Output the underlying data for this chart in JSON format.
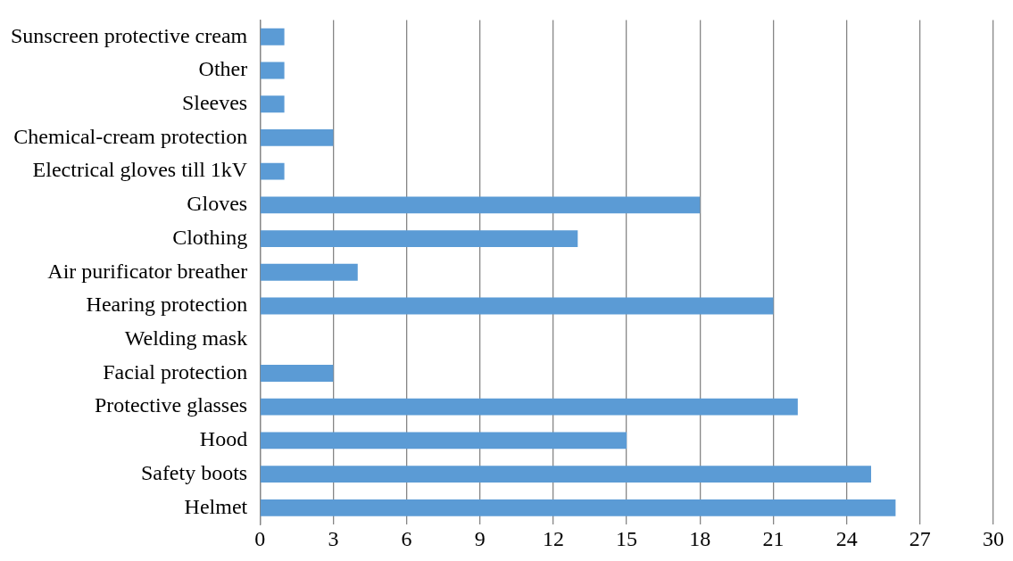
{
  "chart_data": {
    "type": "bar",
    "orientation": "horizontal",
    "categories": [
      "Sunscreen protective cream",
      "Other",
      "Sleeves",
      "Chemical-cream protection",
      "Electrical gloves till 1kV",
      "Gloves",
      "Clothing",
      "Air purificator breather",
      "Hearing protection",
      "Welding mask",
      "Facial protection",
      "Protective glasses",
      "Hood",
      "Safety boots",
      "Helmet"
    ],
    "values": [
      1,
      1,
      1,
      3,
      1,
      18,
      13,
      4,
      21,
      0,
      3,
      22,
      15,
      25,
      26
    ],
    "color": "#5b9bd5",
    "xlim": [
      0,
      30
    ],
    "xticks": [
      0,
      3,
      6,
      9,
      12,
      15,
      18,
      21,
      24,
      27,
      30
    ],
    "grid": "x",
    "legend": false
  }
}
